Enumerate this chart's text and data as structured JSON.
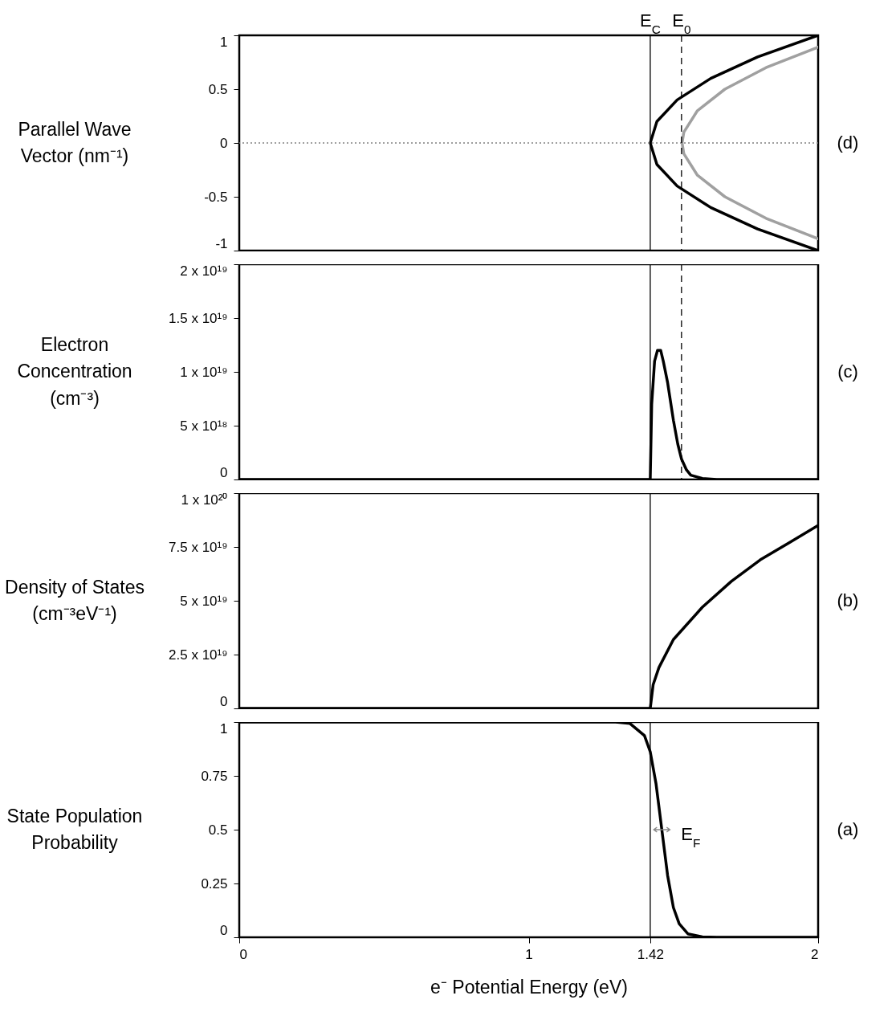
{
  "chart_data": [
    {
      "type": "line",
      "ylabel": "Parallel Wave Vector (nm⁻¹)",
      "xlim": [
        0,
        2
      ],
      "xticks": [
        0,
        1,
        1.42,
        2
      ],
      "ylim": [
        -1,
        1
      ],
      "yticks": [
        -1,
        -0.5,
        0,
        0.5,
        1
      ],
      "tick_labels": "y",
      "grid": false,
      "legend": false,
      "marker": "none",
      "line_style": "solid",
      "series": [
        {
          "color": "#000000",
          "x": [
            2,
            1.791,
            1.629,
            1.513,
            1.443,
            1.42,
            1.443,
            1.513,
            1.629,
            1.791,
            2
          ],
          "values": [
            -1,
            -0.8,
            -0.6,
            -0.4,
            -0.2,
            0,
            0.2,
            0.4,
            0.6,
            0.8,
            1
          ]
        },
        {
          "color": "#a0a0a0",
          "x": [
            2,
            1.82,
            1.678,
            1.583,
            1.536,
            1.53,
            1.536,
            1.583,
            1.678,
            1.82,
            2
          ],
          "values": [
            -0.89,
            -0.7,
            -0.5,
            -0.3,
            -0.1,
            0,
            0.1,
            0.3,
            0.5,
            0.7,
            0.89
          ]
        }
      ],
      "ref_lines": [
        {
          "axis": "y",
          "value": 0,
          "color": "#808080",
          "line_style": "dotted"
        },
        {
          "axis": "x",
          "value": 1.42,
          "label": "E$_{C}$",
          "color": "#000000",
          "line_style": "solid"
        },
        {
          "axis": "x",
          "value": 1.528,
          "label": "E$_{0}$",
          "color": "#000000",
          "line_style": "dashed"
        }
      ],
      "annotations": [
        "(d)"
      ]
    },
    {
      "type": "line",
      "ylabel": "Electron Concentration (cm⁻³)",
      "xlim": [
        0,
        2
      ],
      "xticks": [
        0,
        1,
        1.42,
        2
      ],
      "ylim": [
        0,
        2e+19
      ],
      "yticks": [
        0,
        {
          "value": 5e+18,
          "label": "5 x 10¹⁸"
        },
        {
          "value": 1e+19,
          "label": "1 x 10¹⁹"
        },
        {
          "value": 1.5e+19,
          "label": "1.5 x 10¹⁹"
        },
        {
          "value": 2e+19,
          "label": "2 x 10¹⁹"
        }
      ],
      "tick_labels": "y",
      "grid": false,
      "legend": false,
      "marker": "none",
      "line_style": "solid",
      "series": [
        {
          "color": "#000000",
          "x": [
            0,
            1.42,
            1.425,
            1.435,
            1.445,
            1.456,
            1.465,
            1.48,
            1.5,
            1.515,
            1.528,
            1.545,
            1.56,
            1.6,
            1.65,
            2
          ],
          "values": [
            0,
            0,
            7e+18,
            1.1e+19,
            1.2e+19,
            1.2e+19,
            1.1e+19,
            9e+18,
            5.5e+18,
            3.3e+18,
            1.9e+18,
            9e+17,
            4e+17,
            1e+17,
            0,
            0
          ]
        }
      ],
      "ref_lines": [
        {
          "axis": "x",
          "value": 1.42,
          "color": "#000000",
          "line_style": "solid"
        },
        {
          "axis": "x",
          "value": 1.528,
          "color": "#000000",
          "line_style": "dashed"
        }
      ],
      "annotations": [
        "(c)"
      ]
    },
    {
      "type": "line",
      "ylabel": "Density of States (cm⁻³eV⁻¹)",
      "xlim": [
        0,
        2
      ],
      "xticks": [
        0,
        1,
        1.42,
        2
      ],
      "ylim": [
        0,
        1e+20
      ],
      "yticks": [
        0,
        {
          "value": 2.5e+19,
          "label": "2.5 x 10¹⁹"
        },
        {
          "value": 5e+19,
          "label": "5 x 10¹⁹"
        },
        {
          "value": 7.5e+19,
          "label": "7.5 x 10¹⁹"
        },
        {
          "value": 1e+20,
          "label": "1 x 10²⁰"
        }
      ],
      "tick_labels": "y",
      "grid": false,
      "legend": false,
      "marker": "none",
      "line_style": "solid",
      "series": [
        {
          "color": "#000000",
          "x": [
            0,
            1.42,
            1.43,
            1.45,
            1.5,
            1.6,
            1.7,
            1.8,
            1.9,
            2
          ],
          "values": [
            0,
            0,
            1.1e+19,
            1.9e+19,
            3.2e+19,
            4.7e+19,
            5.9e+19,
            6.9e+19,
            7.7e+19,
            8.5e+19
          ]
        }
      ],
      "ref_lines": [
        {
          "axis": "x",
          "value": 1.42,
          "color": "#000000",
          "line_style": "solid"
        }
      ],
      "annotations": [
        "(b)"
      ]
    },
    {
      "type": "line",
      "ylabel": "State Population Probability",
      "xlabel": "e⁻ Potential Energy (eV)",
      "xlim": [
        0,
        2
      ],
      "xticks": [
        0,
        1,
        1.42,
        2
      ],
      "ylim": [
        0,
        1
      ],
      "yticks": [
        0,
        0.25,
        0.5,
        0.75,
        1
      ],
      "grid": false,
      "legend": false,
      "marker": "none",
      "line_style": "solid",
      "series": [
        {
          "color": "#000000",
          "x": [
            0,
            1.3,
            1.35,
            1.4,
            1.42,
            1.44,
            1.46,
            1.48,
            1.5,
            1.52,
            1.55,
            1.6,
            1.65,
            2
          ],
          "values": [
            1,
            1,
            0.993,
            0.937,
            0.862,
            0.713,
            0.5,
            0.287,
            0.138,
            0.063,
            0.016,
            0.002,
            0,
            0
          ]
        }
      ],
      "ref_lines": [
        {
          "axis": "x",
          "value": 1.42,
          "color": "#000000",
          "line_style": "solid"
        }
      ],
      "annotations": [
        {
          "text": "E$_{F}$",
          "x": 1.46,
          "y": 0.5
        },
        "(a)"
      ]
    }
  ]
}
